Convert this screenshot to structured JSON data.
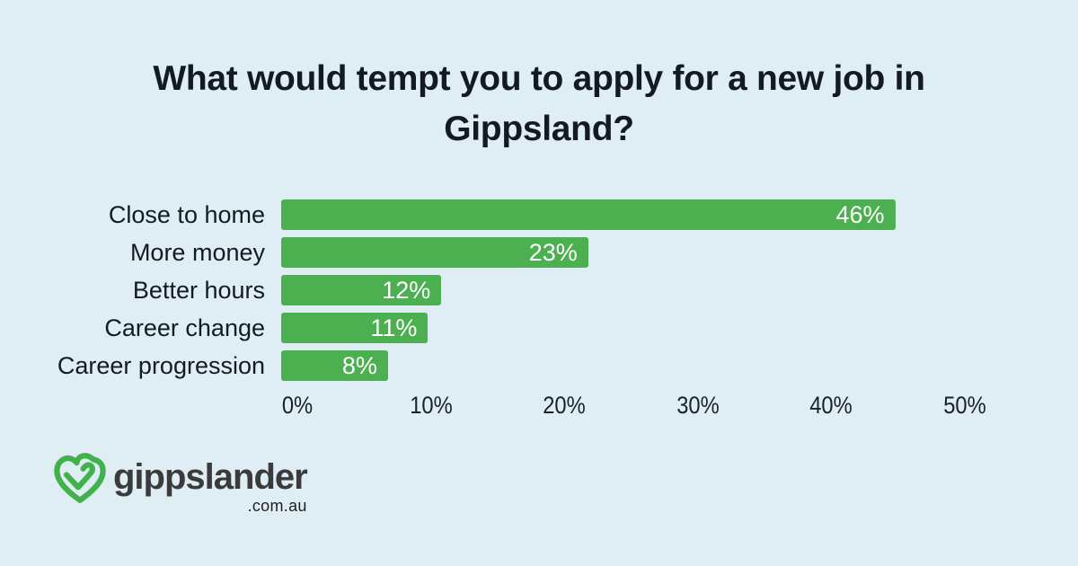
{
  "background_color": "#dfedf5",
  "title_lines": [
    "What would tempt you to apply for a new job in",
    "Gippsland?"
  ],
  "chart_data": {
    "type": "bar",
    "orientation": "horizontal",
    "title": "What would tempt you to apply for a new job in Gippsland?",
    "categories": [
      "Close to home",
      "More money",
      "Better hours",
      "Career change",
      "Career progression"
    ],
    "values": [
      46,
      23,
      12,
      11,
      8
    ],
    "value_labels": [
      "46%",
      "23%",
      "12%",
      "11%",
      "8%"
    ],
    "xlabel": "",
    "ylabel": "",
    "xlim": [
      0,
      50
    ],
    "x_ticks": [
      {
        "value": 0,
        "label": "0%"
      },
      {
        "value": 10,
        "label": "10%"
      },
      {
        "value": 20,
        "label": "20%"
      },
      {
        "value": 30,
        "label": "30%"
      },
      {
        "value": 40,
        "label": "40%"
      },
      {
        "value": 50,
        "label": "50%"
      }
    ],
    "grid": false,
    "legend": "none",
    "bar_color": "#4caf50",
    "value_label_color": "#ffffff"
  },
  "logo": {
    "brand": "gippslander",
    "domain_suffix": ".com.au",
    "icon": "heart-check-icon",
    "icon_color": "#41b24b",
    "text_color": "#3b3b3b"
  }
}
